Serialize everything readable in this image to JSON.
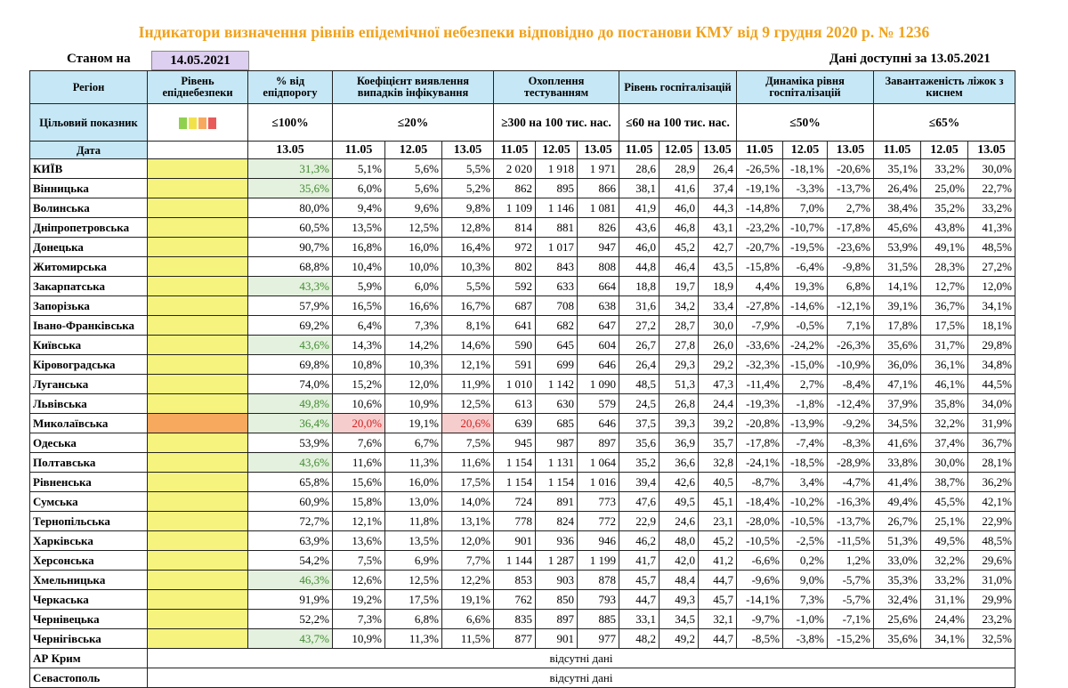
{
  "title": "Індикатори визначення рівнів епідемічної небезпеки відповідно до постанови КМУ від 9 грудня 2020 р. № 1236",
  "as_of_label": "Станом на",
  "as_of_date": "14.05.2021",
  "data_available": "Дані доступні за  13.05.2021",
  "headers": {
    "region": "Регіон",
    "level": "Рівень епіднебезпеки",
    "threshold_pct": "% від епідпорогу",
    "detection": "Коефіцієнт виявлення випадків інфікування",
    "testing": "Охоплення тестуванням",
    "hosp": "Рівень госпіталізацій",
    "hosp_dyn": "Динаміка рівня госпіталізацій",
    "oxygen": "Завантаженість ліжок з киснем"
  },
  "targets": {
    "label": "Цільовий показник",
    "threshold_pct": "≤100%",
    "detection": "≤20%",
    "testing": "≥300 на 100 тис. нас.",
    "hosp": "≤60 на 100 тис. нас.",
    "hosp_dyn": "≤50%",
    "oxygen": "≤65%"
  },
  "level_legend_colors": [
    "#8fd14f",
    "#f2e24a",
    "#f7a95d",
    "#e85a5a"
  ],
  "date_row": {
    "label": "Дата",
    "pct_date": "13.05",
    "dates": [
      "11.05",
      "12.05",
      "13.05"
    ]
  },
  "regions": [
    {
      "name": "КИЇВ",
      "level": "yellow",
      "pct": "31,3%",
      "pct_ok": true,
      "det": [
        "5,1%",
        "5,6%",
        "5,5%"
      ],
      "test": [
        "2 020",
        "1 918",
        "1 971"
      ],
      "hosp": [
        "28,6",
        "28,9",
        "26,4"
      ],
      "dyn": [
        "-26,5%",
        "-18,1%",
        "-20,6%"
      ],
      "oxy": [
        "35,1%",
        "33,2%",
        "30,0%"
      ]
    },
    {
      "name": "Вінницька",
      "level": "yellow",
      "pct": "35,6%",
      "pct_ok": true,
      "det": [
        "6,0%",
        "5,6%",
        "5,2%"
      ],
      "test": [
        "862",
        "895",
        "866"
      ],
      "hosp": [
        "38,1",
        "41,6",
        "37,4"
      ],
      "dyn": [
        "-19,1%",
        "-3,3%",
        "-13,7%"
      ],
      "oxy": [
        "26,4%",
        "25,0%",
        "22,7%"
      ]
    },
    {
      "name": "Волинська",
      "level": "yellow",
      "pct": "80,0%",
      "pct_ok": false,
      "det": [
        "9,4%",
        "9,6%",
        "9,8%"
      ],
      "test": [
        "1 109",
        "1 146",
        "1 081"
      ],
      "hosp": [
        "41,9",
        "46,0",
        "44,3"
      ],
      "dyn": [
        "-14,8%",
        "7,0%",
        "2,7%"
      ],
      "oxy": [
        "38,4%",
        "35,2%",
        "33,2%"
      ]
    },
    {
      "name": "Дніпропетровська",
      "level": "yellow",
      "pct": "60,5%",
      "pct_ok": false,
      "det": [
        "13,5%",
        "12,5%",
        "12,8%"
      ],
      "test": [
        "814",
        "881",
        "826"
      ],
      "hosp": [
        "43,6",
        "46,8",
        "43,1"
      ],
      "dyn": [
        "-23,2%",
        "-10,7%",
        "-17,8%"
      ],
      "oxy": [
        "45,6%",
        "43,8%",
        "41,3%"
      ]
    },
    {
      "name": "Донецька",
      "level": "yellow",
      "pct": "90,7%",
      "pct_ok": false,
      "det": [
        "16,8%",
        "16,0%",
        "16,4%"
      ],
      "test": [
        "972",
        "1 017",
        "947"
      ],
      "hosp": [
        "46,0",
        "45,2",
        "42,7"
      ],
      "dyn": [
        "-20,7%",
        "-19,5%",
        "-23,6%"
      ],
      "oxy": [
        "53,9%",
        "49,1%",
        "48,5%"
      ]
    },
    {
      "name": "Житомирська",
      "level": "yellow",
      "pct": "68,8%",
      "pct_ok": false,
      "det": [
        "10,4%",
        "10,0%",
        "10,3%"
      ],
      "test": [
        "802",
        "843",
        "808"
      ],
      "hosp": [
        "44,8",
        "46,4",
        "43,5"
      ],
      "dyn": [
        "-15,8%",
        "-6,4%",
        "-9,8%"
      ],
      "oxy": [
        "31,5%",
        "28,3%",
        "27,2%"
      ]
    },
    {
      "name": "Закарпатська",
      "level": "yellow",
      "pct": "43,3%",
      "pct_ok": true,
      "det": [
        "5,9%",
        "6,0%",
        "5,5%"
      ],
      "test": [
        "592",
        "633",
        "664"
      ],
      "hosp": [
        "18,8",
        "19,7",
        "18,9"
      ],
      "dyn": [
        "4,4%",
        "19,3%",
        "6,8%"
      ],
      "oxy": [
        "14,1%",
        "12,7%",
        "12,0%"
      ]
    },
    {
      "name": "Запорізька",
      "level": "yellow",
      "pct": "57,9%",
      "pct_ok": false,
      "det": [
        "16,5%",
        "16,6%",
        "16,7%"
      ],
      "test": [
        "687",
        "708",
        "638"
      ],
      "hosp": [
        "31,6",
        "34,2",
        "33,4"
      ],
      "dyn": [
        "-27,8%",
        "-14,6%",
        "-12,1%"
      ],
      "oxy": [
        "39,1%",
        "36,7%",
        "34,1%"
      ]
    },
    {
      "name": "Івано-Франківська",
      "level": "yellow",
      "pct": "69,2%",
      "pct_ok": false,
      "det": [
        "6,4%",
        "7,3%",
        "8,1%"
      ],
      "test": [
        "641",
        "682",
        "647"
      ],
      "hosp": [
        "27,2",
        "28,7",
        "30,0"
      ],
      "dyn": [
        "-7,9%",
        "-0,5%",
        "7,1%"
      ],
      "oxy": [
        "17,8%",
        "17,5%",
        "18,1%"
      ]
    },
    {
      "name": "Київська",
      "level": "yellow",
      "pct": "43,6%",
      "pct_ok": true,
      "det": [
        "14,3%",
        "14,2%",
        "14,6%"
      ],
      "test": [
        "590",
        "645",
        "604"
      ],
      "hosp": [
        "26,7",
        "27,8",
        "26,0"
      ],
      "dyn": [
        "-33,6%",
        "-24,2%",
        "-26,3%"
      ],
      "oxy": [
        "35,6%",
        "31,7%",
        "29,8%"
      ]
    },
    {
      "name": "Кіровоградська",
      "level": "yellow",
      "pct": "69,8%",
      "pct_ok": false,
      "det": [
        "10,8%",
        "10,3%",
        "12,1%"
      ],
      "test": [
        "591",
        "699",
        "646"
      ],
      "hosp": [
        "26,4",
        "29,3",
        "29,2"
      ],
      "dyn": [
        "-32,3%",
        "-15,0%",
        "-10,9%"
      ],
      "oxy": [
        "36,0%",
        "36,1%",
        "34,8%"
      ]
    },
    {
      "name": "Луганська",
      "level": "yellow",
      "pct": "74,0%",
      "pct_ok": false,
      "det": [
        "15,2%",
        "12,0%",
        "11,9%"
      ],
      "test": [
        "1 010",
        "1 142",
        "1 090"
      ],
      "hosp": [
        "48,5",
        "51,3",
        "47,3"
      ],
      "dyn": [
        "-11,4%",
        "2,7%",
        "-8,4%"
      ],
      "oxy": [
        "47,1%",
        "46,1%",
        "44,5%"
      ]
    },
    {
      "name": "Львівська",
      "level": "yellow",
      "pct": "49,8%",
      "pct_ok": true,
      "det": [
        "10,6%",
        "10,9%",
        "12,5%"
      ],
      "test": [
        "613",
        "630",
        "579"
      ],
      "hosp": [
        "24,5",
        "26,8",
        "24,4"
      ],
      "dyn": [
        "-19,3%",
        "-1,8%",
        "-12,4%"
      ],
      "oxy": [
        "37,9%",
        "35,8%",
        "34,0%"
      ]
    },
    {
      "name": "Миколаївська",
      "level": "orange",
      "pct": "36,4%",
      "pct_ok": true,
      "det": [
        "20,0%",
        "19,1%",
        "20,6%"
      ],
      "det_red": [
        true,
        false,
        true
      ],
      "test": [
        "639",
        "685",
        "646"
      ],
      "hosp": [
        "37,5",
        "39,3",
        "39,2"
      ],
      "dyn": [
        "-20,8%",
        "-13,9%",
        "-9,2%"
      ],
      "oxy": [
        "34,5%",
        "32,2%",
        "31,9%"
      ]
    },
    {
      "name": "Одеська",
      "level": "yellow",
      "pct": "53,9%",
      "pct_ok": false,
      "det": [
        "7,6%",
        "6,7%",
        "7,5%"
      ],
      "test": [
        "945",
        "987",
        "897"
      ],
      "hosp": [
        "35,6",
        "36,9",
        "35,7"
      ],
      "dyn": [
        "-17,8%",
        "-7,4%",
        "-8,3%"
      ],
      "oxy": [
        "41,6%",
        "37,4%",
        "36,7%"
      ]
    },
    {
      "name": "Полтавська",
      "level": "yellow",
      "pct": "43,6%",
      "pct_ok": true,
      "det": [
        "11,6%",
        "11,3%",
        "11,6%"
      ],
      "test": [
        "1 154",
        "1 131",
        "1 064"
      ],
      "hosp": [
        "35,2",
        "36,6",
        "32,8"
      ],
      "dyn": [
        "-24,1%",
        "-18,5%",
        "-28,9%"
      ],
      "oxy": [
        "33,8%",
        "30,0%",
        "28,1%"
      ]
    },
    {
      "name": "Рівненська",
      "level": "yellow",
      "pct": "65,8%",
      "pct_ok": false,
      "det": [
        "15,6%",
        "16,0%",
        "17,5%"
      ],
      "test": [
        "1 154",
        "1 154",
        "1 016"
      ],
      "hosp": [
        "39,4",
        "42,6",
        "40,5"
      ],
      "dyn": [
        "-8,7%",
        "3,4%",
        "-4,7%"
      ],
      "oxy": [
        "41,4%",
        "38,7%",
        "36,2%"
      ]
    },
    {
      "name": "Сумська",
      "level": "yellow",
      "pct": "60,9%",
      "pct_ok": false,
      "det": [
        "15,8%",
        "13,0%",
        "14,0%"
      ],
      "test": [
        "724",
        "891",
        "773"
      ],
      "hosp": [
        "47,6",
        "49,5",
        "45,1"
      ],
      "dyn": [
        "-18,4%",
        "-10,2%",
        "-16,3%"
      ],
      "oxy": [
        "49,4%",
        "45,5%",
        "42,1%"
      ]
    },
    {
      "name": "Тернопільська",
      "level": "yellow",
      "pct": "72,7%",
      "pct_ok": false,
      "det": [
        "12,1%",
        "11,8%",
        "13,1%"
      ],
      "test": [
        "778",
        "824",
        "772"
      ],
      "hosp": [
        "22,9",
        "24,6",
        "23,1"
      ],
      "dyn": [
        "-28,0%",
        "-10,5%",
        "-13,7%"
      ],
      "oxy": [
        "26,7%",
        "25,1%",
        "22,9%"
      ]
    },
    {
      "name": "Харківська",
      "level": "yellow",
      "pct": "63,9%",
      "pct_ok": false,
      "det": [
        "13,6%",
        "13,5%",
        "12,0%"
      ],
      "test": [
        "901",
        "936",
        "946"
      ],
      "hosp": [
        "46,2",
        "48,0",
        "45,2"
      ],
      "dyn": [
        "-10,5%",
        "-2,5%",
        "-11,5%"
      ],
      "oxy": [
        "51,3%",
        "49,5%",
        "48,5%"
      ]
    },
    {
      "name": "Херсонська",
      "level": "yellow",
      "pct": "54,2%",
      "pct_ok": false,
      "det": [
        "7,5%",
        "6,9%",
        "7,7%"
      ],
      "test": [
        "1 144",
        "1 287",
        "1 199"
      ],
      "hosp": [
        "41,7",
        "42,0",
        "41,2"
      ],
      "dyn": [
        "-6,6%",
        "0,2%",
        "1,2%"
      ],
      "oxy": [
        "33,0%",
        "32,2%",
        "29,6%"
      ]
    },
    {
      "name": "Хмельницька",
      "level": "yellow",
      "pct": "46,3%",
      "pct_ok": true,
      "det": [
        "12,6%",
        "12,5%",
        "12,2%"
      ],
      "test": [
        "853",
        "903",
        "878"
      ],
      "hosp": [
        "45,7",
        "48,4",
        "44,7"
      ],
      "dyn": [
        "-9,6%",
        "9,0%",
        "-5,7%"
      ],
      "oxy": [
        "35,3%",
        "33,2%",
        "31,0%"
      ]
    },
    {
      "name": "Черкаська",
      "level": "yellow",
      "pct": "91,9%",
      "pct_ok": false,
      "det": [
        "19,2%",
        "17,5%",
        "19,1%"
      ],
      "test": [
        "762",
        "850",
        "793"
      ],
      "hosp": [
        "44,7",
        "49,3",
        "45,7"
      ],
      "dyn": [
        "-14,1%",
        "7,3%",
        "-5,7%"
      ],
      "oxy": [
        "32,4%",
        "31,1%",
        "29,9%"
      ]
    },
    {
      "name": "Чернівецька",
      "level": "yellow",
      "pct": "52,2%",
      "pct_ok": false,
      "det": [
        "7,3%",
        "6,8%",
        "6,6%"
      ],
      "test": [
        "835",
        "897",
        "885"
      ],
      "hosp": [
        "33,1",
        "34,5",
        "32,1"
      ],
      "dyn": [
        "-9,7%",
        "-1,0%",
        "-7,1%"
      ],
      "oxy": [
        "25,6%",
        "24,4%",
        "23,2%"
      ]
    },
    {
      "name": "Чернігівська",
      "level": "yellow",
      "pct": "43,7%",
      "pct_ok": true,
      "det": [
        "10,9%",
        "11,3%",
        "11,5%"
      ],
      "test": [
        "877",
        "901",
        "977"
      ],
      "hosp": [
        "48,2",
        "49,2",
        "44,7"
      ],
      "dyn": [
        "-8,5%",
        "-3,8%",
        "-15,2%"
      ],
      "oxy": [
        "35,6%",
        "34,1%",
        "32,5%"
      ]
    }
  ],
  "missing": [
    {
      "name": "АР Крим",
      "text": "відсутні дані"
    },
    {
      "name": "Севастополь",
      "text": "відсутні дані"
    }
  ]
}
